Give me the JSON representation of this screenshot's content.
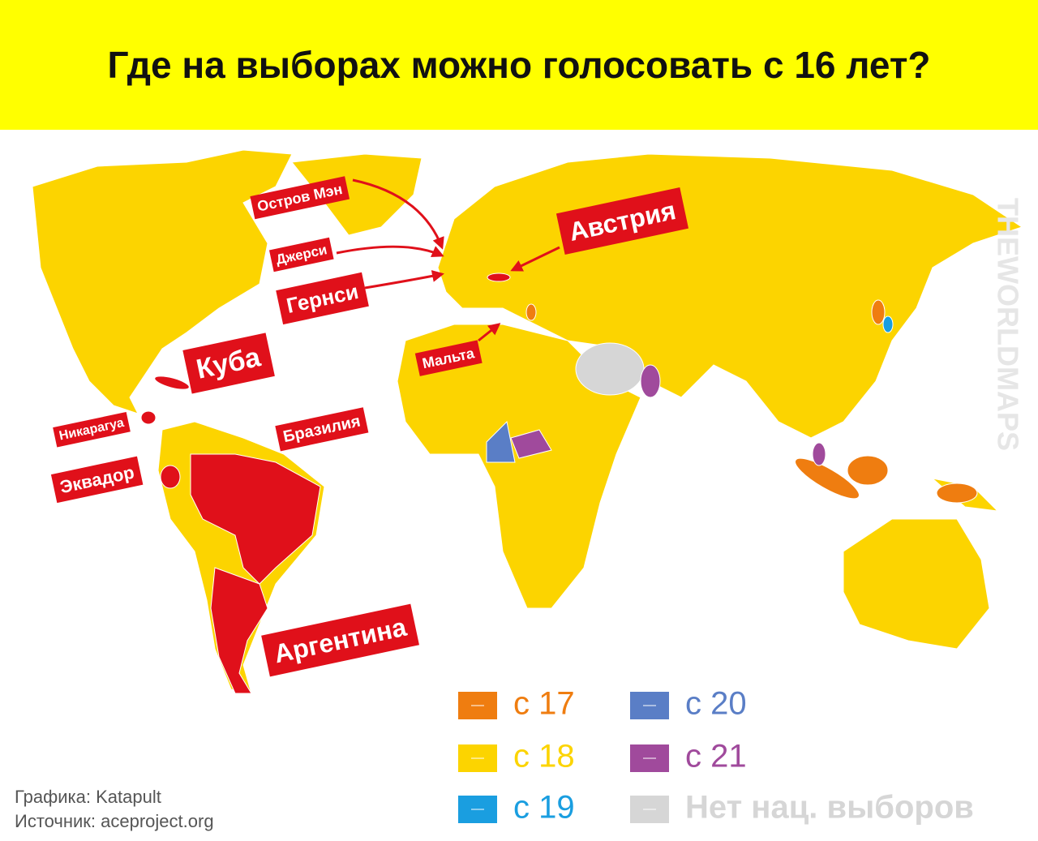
{
  "header": {
    "title": "Где на выборах можно голосовать с 16 лет?"
  },
  "map": {
    "labels": [
      "Остров Мэн",
      "Джерси",
      "Гернси",
      "Куба",
      "Мальта",
      "Австрия",
      "Никарагуа",
      "Эквадор",
      "Бразилия",
      "Аргентина"
    ]
  },
  "legend": {
    "items": [
      {
        "label": "с 17",
        "color": "#ef7d10"
      },
      {
        "label": "с 18",
        "color": "#fcd400"
      },
      {
        "label": "с 19",
        "color": "#1a9ee0"
      },
      {
        "label": "с 20",
        "color": "#5a7ec6"
      },
      {
        "label": "с 21",
        "color": "#a04a9c"
      },
      {
        "label": "Нет нац. выборов",
        "color": "#d6d6d6"
      }
    ]
  },
  "footer": {
    "credit": "Графика: Katapult",
    "source": "Источник: aceproject.org"
  },
  "watermark": "THEWORLDMAPS"
}
